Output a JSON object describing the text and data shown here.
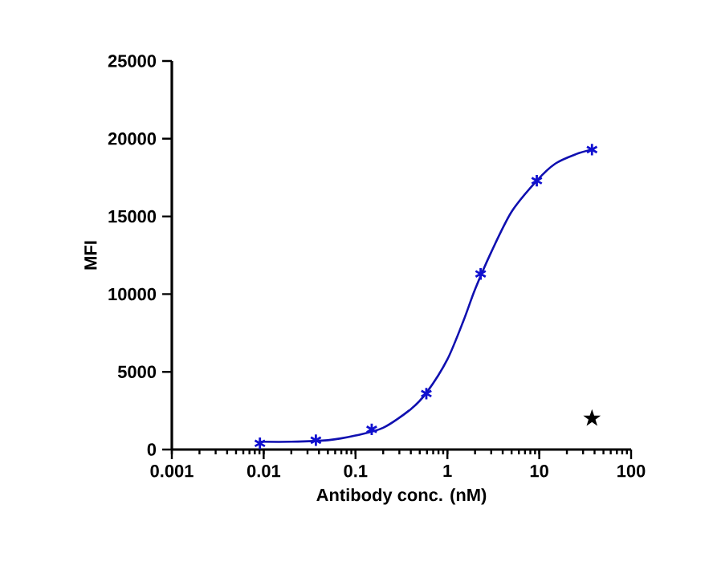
{
  "chart_data": {
    "type": "scatter",
    "xlabel": "Antibody conc. (nM)",
    "ylabel": "MFI",
    "log": "x",
    "xlim": [
      0.001,
      100
    ],
    "xticks": [
      0.001,
      0.01,
      0.1,
      1,
      10,
      100
    ],
    "ylim": [
      0,
      25000
    ],
    "yticks": [
      0,
      5000,
      10000,
      15000,
      20000,
      25000
    ],
    "grid": false,
    "series": [
      {
        "type": "line",
        "color": "#1010b0",
        "marker": "none",
        "x": [
          0.0091,
          0.02,
          0.05,
          0.1,
          0.2,
          0.4,
          0.6,
          1,
          1.5,
          2,
          3,
          5,
          9.4,
          15,
          25,
          37.5
        ],
        "values": [
          500,
          500,
          600,
          900,
          1400,
          2600,
          3700,
          5800,
          8300,
          10300,
          12700,
          15300,
          17300,
          18400,
          19000,
          19300
        ]
      },
      {
        "color": "#1010d0",
        "marker": "cross",
        "x": [
          0.0091,
          0.037,
          0.15,
          0.59,
          2.3,
          9.4,
          37.5
        ],
        "values": [
          400,
          600,
          1300,
          3600,
          11300,
          17300,
          19300
        ]
      },
      {
        "color": "#000000",
        "marker": "star",
        "x": [
          37.5
        ],
        "values": [
          2000
        ]
      }
    ]
  }
}
